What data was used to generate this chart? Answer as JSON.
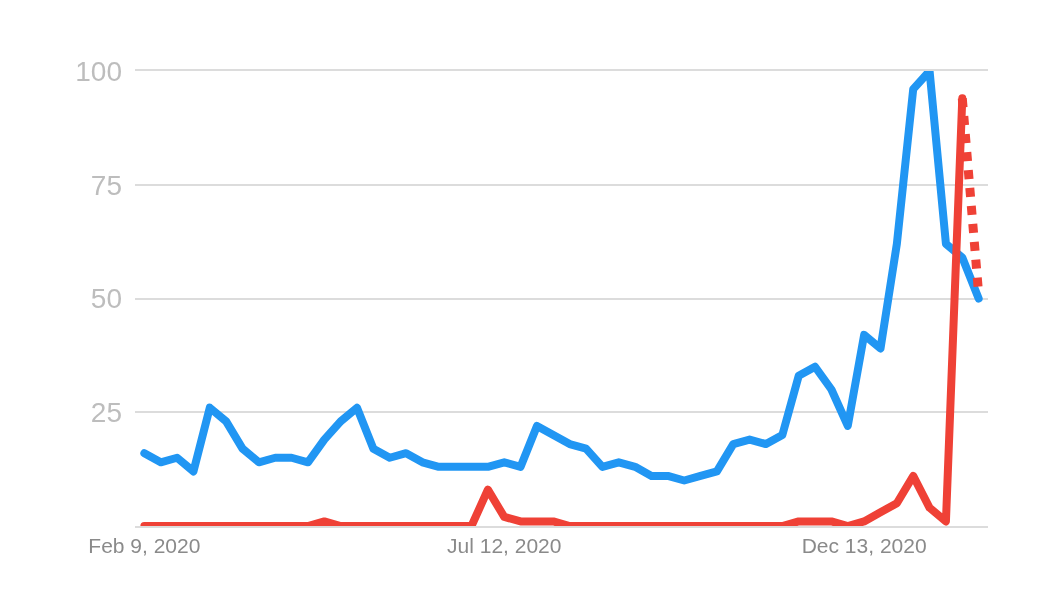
{
  "chart_data": {
    "type": "line",
    "x": [
      "2020-02-09",
      "2020-02-16",
      "2020-02-23",
      "2020-03-01",
      "2020-03-08",
      "2020-03-15",
      "2020-03-22",
      "2020-03-29",
      "2020-04-05",
      "2020-04-12",
      "2020-04-19",
      "2020-04-26",
      "2020-05-03",
      "2020-05-10",
      "2020-05-17",
      "2020-05-24",
      "2020-05-31",
      "2020-06-07",
      "2020-06-14",
      "2020-06-21",
      "2020-06-28",
      "2020-07-05",
      "2020-07-12",
      "2020-07-19",
      "2020-07-26",
      "2020-08-02",
      "2020-08-09",
      "2020-08-16",
      "2020-08-23",
      "2020-08-30",
      "2020-09-06",
      "2020-09-13",
      "2020-09-20",
      "2020-09-27",
      "2020-10-04",
      "2020-10-11",
      "2020-10-18",
      "2020-10-25",
      "2020-11-01",
      "2020-11-08",
      "2020-11-15",
      "2020-11-22",
      "2020-11-29",
      "2020-12-06",
      "2020-12-13",
      "2020-12-20",
      "2020-12-27",
      "2021-01-03",
      "2021-01-10",
      "2021-01-17",
      "2021-01-24",
      "2021-01-31"
    ],
    "series": [
      {
        "color": "#2196f3",
        "values": [
          16,
          14,
          15,
          12,
          26,
          23,
          17,
          14,
          15,
          15,
          14,
          19,
          23,
          26,
          17,
          15,
          16,
          14,
          13,
          13,
          13,
          13,
          14,
          13,
          22,
          20,
          18,
          17,
          13,
          14,
          13,
          11,
          11,
          10,
          11,
          12,
          18,
          19,
          18,
          20,
          33,
          35,
          30,
          22,
          42,
          39,
          62,
          96,
          100,
          62,
          59,
          50
        ]
      },
      {
        "color": "#ef4136",
        "values": [
          0,
          0,
          0,
          0,
          0,
          0,
          0,
          0,
          0,
          0,
          0,
          1,
          0,
          0,
          0,
          0,
          0,
          0,
          0,
          0,
          0,
          8,
          2,
          1,
          1,
          1,
          0,
          0,
          0,
          0,
          0,
          0,
          0,
          0,
          0,
          0,
          0,
          0,
          0,
          0,
          1,
          1,
          1,
          0,
          1,
          3,
          5,
          11,
          4,
          1,
          94,
          null
        ]
      },
      {
        "color": "#ef4136",
        "line_style": "dotted",
        "values": [
          null,
          null,
          null,
          null,
          null,
          null,
          null,
          null,
          null,
          null,
          null,
          null,
          null,
          null,
          null,
          null,
          null,
          null,
          null,
          null,
          null,
          null,
          null,
          null,
          null,
          null,
          null,
          null,
          null,
          null,
          null,
          null,
          null,
          null,
          null,
          null,
          null,
          null,
          null,
          null,
          null,
          null,
          null,
          null,
          null,
          null,
          null,
          null,
          null,
          null,
          94,
          51
        ]
      }
    ],
    "xlim": [
      "2020-02-05",
      "2021-02-04"
    ],
    "xticks": [
      {
        "value": "2020-02-09",
        "label": "Feb 9, 2020"
      },
      {
        "value": "2020-07-12",
        "label": "Jul 12, 2020"
      },
      {
        "value": "2020-12-13",
        "label": "Dec 13, 2020"
      }
    ],
    "ylim": [
      0,
      100
    ],
    "yticks": [
      {
        "value": 0,
        "label": null
      },
      25,
      50,
      75,
      100
    ],
    "grid": "y",
    "marker": "none",
    "line_style": "solid"
  }
}
